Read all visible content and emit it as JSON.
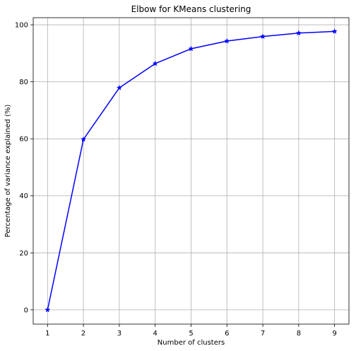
{
  "chart_data": {
    "type": "line",
    "title": "Elbow for KMeans clustering",
    "xlabel": "Number of clusters",
    "ylabel": "Percentage of variance explained (%)",
    "x": [
      1,
      2,
      3,
      4,
      5,
      6,
      7,
      8,
      9
    ],
    "xlim": [
      0.6,
      9.4
    ],
    "ylim": [
      -5,
      102.5
    ],
    "xticks": [
      "1",
      "2",
      "3",
      "4",
      "5",
      "6",
      "7",
      "8",
      "9"
    ],
    "yticks": [
      "0",
      "20",
      "40",
      "60",
      "80",
      "100"
    ],
    "grid": true,
    "series": [
      {
        "values": [
          0,
          59.8,
          77.9,
          86.4,
          91.6,
          94.3,
          95.9,
          97.1,
          97.7
        ],
        "color": "#0000ff",
        "marker": "star"
      }
    ]
  }
}
